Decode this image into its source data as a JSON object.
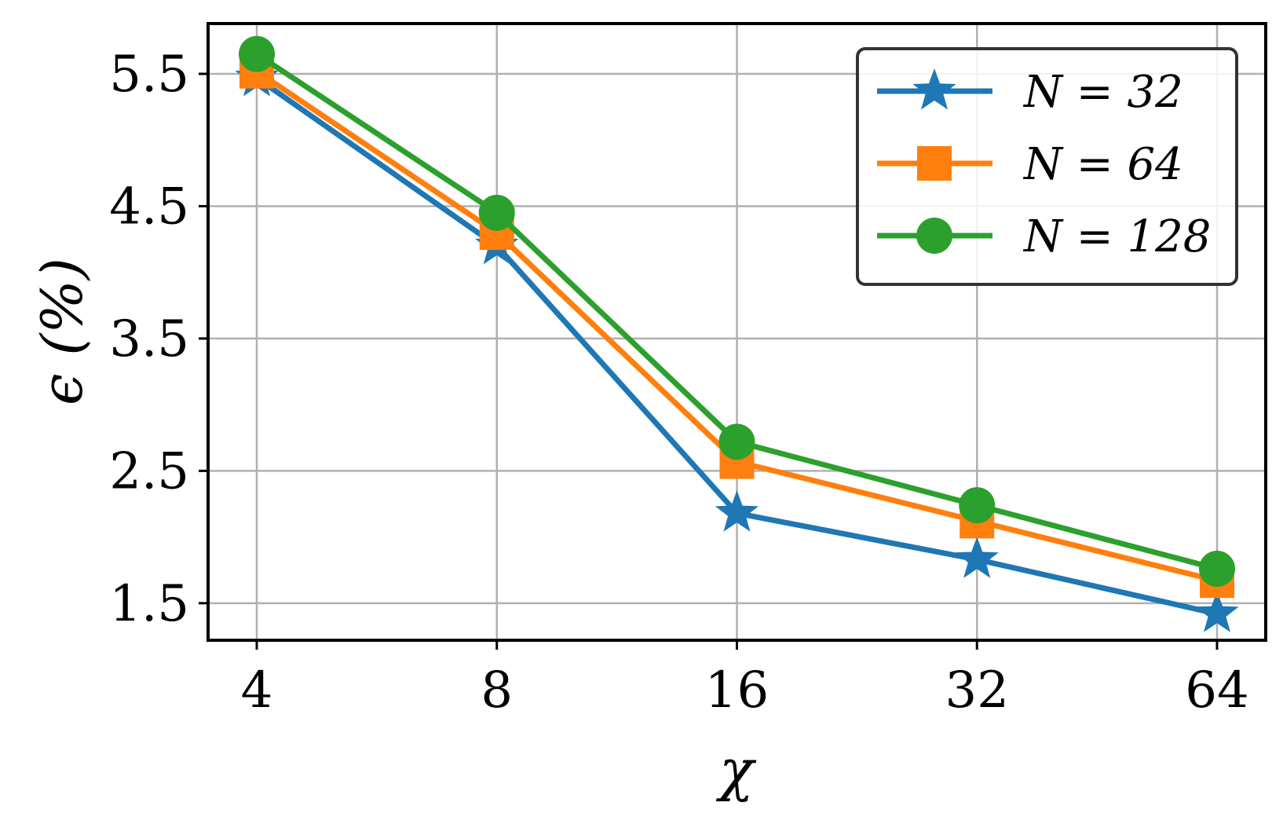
{
  "chart_data": {
    "type": "line",
    "categories": [
      "4",
      "8",
      "16",
      "32",
      "64"
    ],
    "x": [
      4,
      8,
      16,
      32,
      64
    ],
    "x_scale": "log2",
    "xlabel": "χ",
    "ylabel": "ϵ (%)",
    "ylim": [
      1.22,
      5.88
    ],
    "yticks": [
      1.5,
      2.5,
      3.5,
      4.5,
      5.5
    ],
    "ytick_labels": [
      "1.5",
      "2.5",
      "3.5",
      "4.5",
      "5.5"
    ],
    "grid": true,
    "legend_position": "top-right",
    "series": [
      {
        "name": "N = 32",
        "color": "#1f77b4",
        "marker": "star",
        "values": [
          5.47,
          4.2,
          2.18,
          1.83,
          1.42
        ]
      },
      {
        "name": "N = 64",
        "color": "#ff7f0e",
        "marker": "square",
        "values": [
          5.52,
          4.3,
          2.57,
          2.12,
          1.67
        ]
      },
      {
        "name": "N = 128",
        "color": "#2ca02c",
        "marker": "circle",
        "values": [
          5.65,
          4.45,
          2.72,
          2.24,
          1.76
        ]
      }
    ]
  }
}
